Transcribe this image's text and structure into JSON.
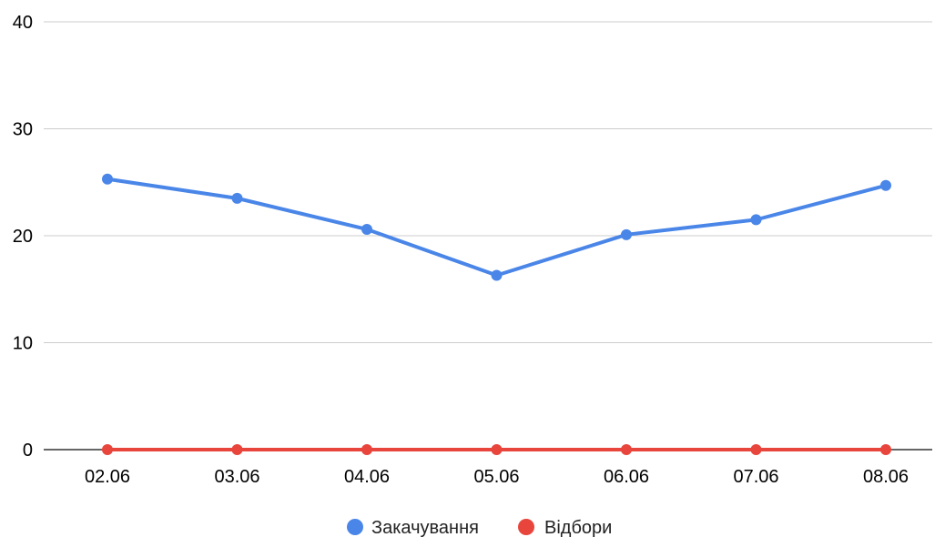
{
  "chart_data": {
    "type": "line",
    "categories": [
      "02.06",
      "03.06",
      "04.06",
      "05.06",
      "06.06",
      "07.06",
      "08.06"
    ],
    "series": [
      {
        "name": "Закачування",
        "color": "#4a86e8",
        "values": [
          25.3,
          23.5,
          20.6,
          16.3,
          20.1,
          21.5,
          24.7
        ]
      },
      {
        "name": "Відбори",
        "color": "#e8453c",
        "values": [
          0,
          0,
          0,
          0,
          0,
          0,
          0
        ]
      }
    ],
    "ylim": [
      0,
      40
    ],
    "yticks": [
      0,
      10,
      20,
      30,
      40
    ],
    "grid": true,
    "legend_position": "bottom"
  }
}
